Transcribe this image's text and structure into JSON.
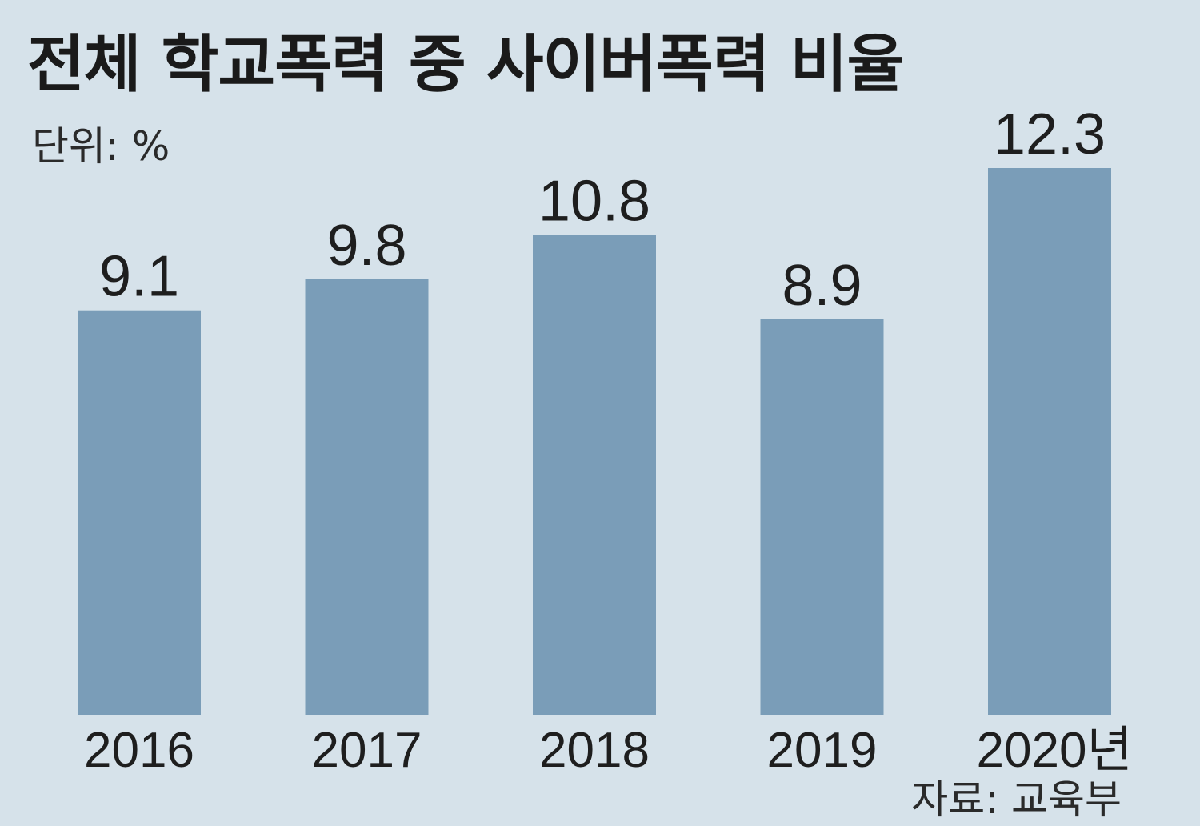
{
  "chart_data": {
    "type": "bar",
    "title": "전체 학교폭력 중 사이버폭력 비율",
    "unit_label": "단위: %",
    "source": "자료: 교육부",
    "categories": [
      "2016",
      "2017",
      "2018",
      "2019",
      "2020년"
    ],
    "values": [
      9.1,
      9.8,
      10.8,
      8.9,
      12.3
    ],
    "value_labels": [
      "9.1",
      "9.8",
      "10.8",
      "8.9",
      "12.3"
    ],
    "ylim": [
      0,
      12.3
    ],
    "grid": false,
    "bar_color": "#7a9db8",
    "background_color": "#d6e2ea"
  }
}
